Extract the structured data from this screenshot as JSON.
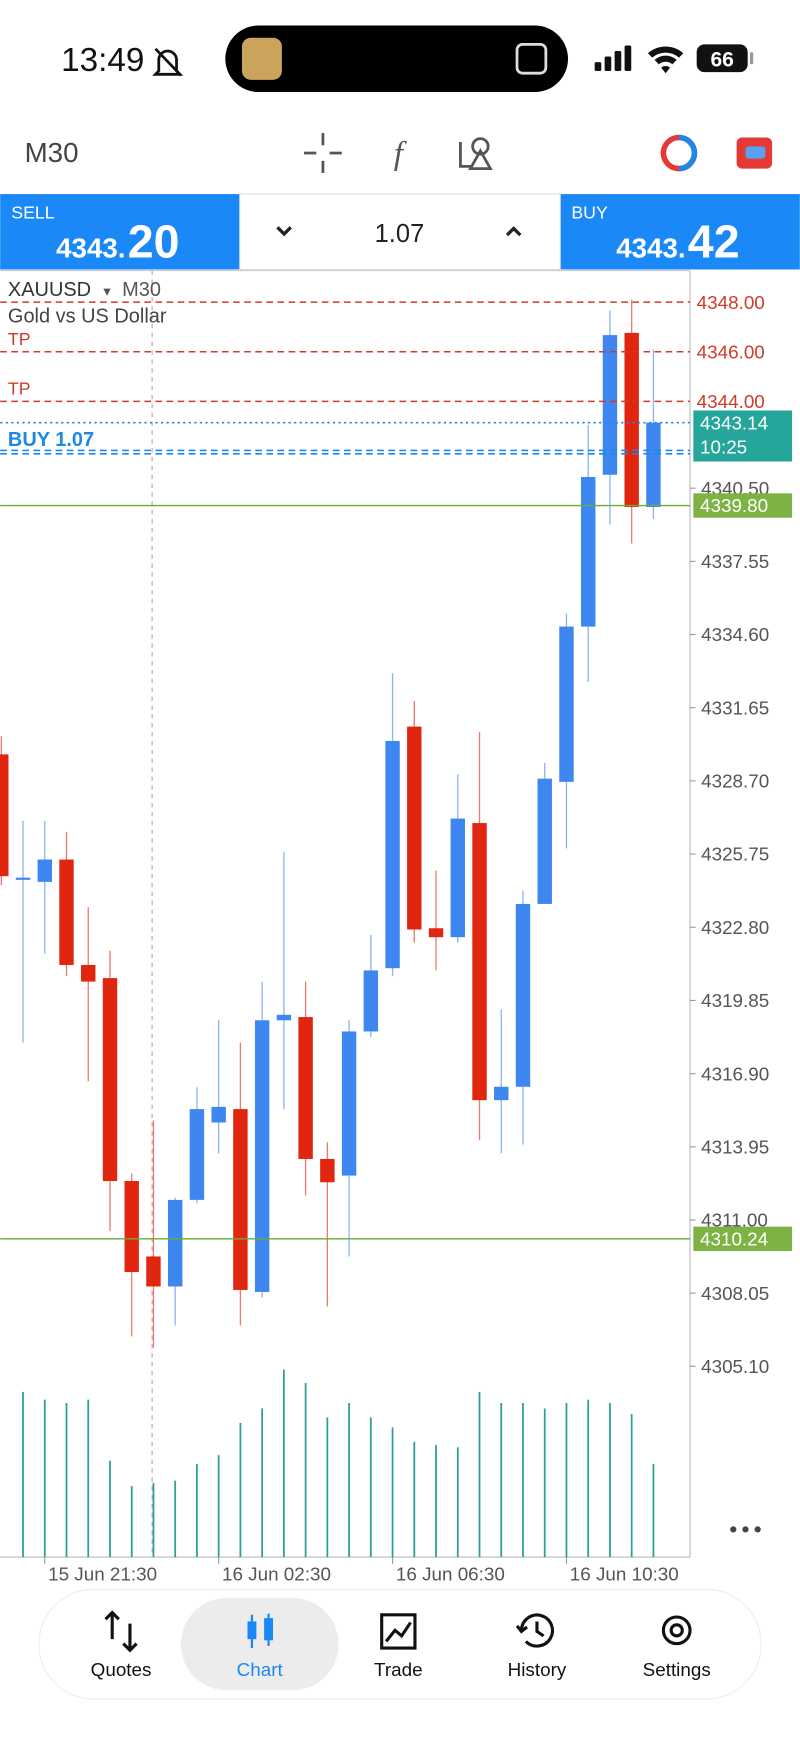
{
  "status_bar": {
    "time": "13:49",
    "battery": "66"
  },
  "toolbar": {
    "timeframe": "M30"
  },
  "trade_panel": {
    "sell": {
      "label": "SELL",
      "price_prefix": "4343.",
      "price_suffix": "20"
    },
    "volume": "1.07",
    "buy": {
      "label": "BUY",
      "price_prefix": "4343.",
      "price_suffix": "42"
    }
  },
  "chart": {
    "type": "candlestick",
    "symbol": "XAUUSD",
    "timeframe": "M30",
    "description": "Gold vs US Dollar",
    "categories": [
      null,
      null,
      "15 Jun 21:30",
      null,
      null,
      null,
      null,
      null,
      null,
      null,
      "16 Jun 02:30",
      null,
      null,
      null,
      null,
      null,
      null,
      null,
      "16 Jun 06:30",
      null,
      null,
      null,
      null,
      null,
      null,
      null,
      "16 Jun 10:30",
      null,
      null,
      null,
      null
    ],
    "open": [
      4329.77,
      4324.77,
      4324.63,
      4325.53,
      4321.28,
      4320.75,
      4312.57,
      4309.53,
      4308.32,
      4311.81,
      4314.93,
      4315.47,
      4308.1,
      4319.05,
      4319.18,
      4313.46,
      4312.79,
      4318.6,
      4321.15,
      4330.89,
      4322.76,
      4322.4,
      4327.0,
      4315.83,
      4316.37,
      4323.74,
      4328.66,
      4334.92,
      4341.04,
      4346.76,
      4339.74
    ],
    "high": [
      4330.5,
      4327.09,
      4327.09,
      4326.65,
      4323.61,
      4321.86,
      4312.88,
      4315.02,
      4311.9,
      4316.35,
      4319.05,
      4318.15,
      4320.61,
      4325.84,
      4320.61,
      4314.13,
      4319.05,
      4322.49,
      4333.04,
      4331.92,
      4325.08,
      4328.97,
      4330.67,
      4319.49,
      4324.28,
      4329.42,
      4335.45,
      4343.05,
      4347.66,
      4348.1,
      4346.09
    ],
    "low": [
      4324.5,
      4318.15,
      4321.73,
      4320.83,
      4316.59,
      4310.55,
      4306.31,
      4305.86,
      4306.75,
      4311.67,
      4313.68,
      4306.75,
      4307.87,
      4315.47,
      4311.98,
      4307.51,
      4309.53,
      4318.38,
      4320.83,
      4322.18,
      4321.06,
      4322.18,
      4314.22,
      4313.68,
      4314.04,
      4323.74,
      4325.98,
      4332.68,
      4339.03,
      4338.27,
      4339.25
    ],
    "close": [
      4324.86,
      4324.8,
      4325.53,
      4321.28,
      4320.61,
      4312.57,
      4308.9,
      4308.32,
      4311.81,
      4315.47,
      4315.56,
      4308.18,
      4319.05,
      4319.27,
      4313.46,
      4312.52,
      4318.6,
      4321.06,
      4330.31,
      4322.71,
      4322.4,
      4327.18,
      4315.83,
      4316.37,
      4323.74,
      4328.79,
      4334.92,
      4340.95,
      4346.67,
      4339.74,
      4343.14
    ],
    "volume": [
      null,
      149,
      142,
      139,
      142,
      87,
      64,
      67,
      69,
      84,
      92,
      121,
      134,
      169,
      157,
      126,
      139,
      126,
      117,
      104,
      101,
      99,
      149,
      139,
      139,
      134,
      139,
      142,
      139,
      129,
      84
    ],
    "up_color": "#3f87f0",
    "down_color": "#e1260f",
    "volume_color": "#2aa198",
    "ylim": [
      4297.41,
      4349.27
    ],
    "yticks": [
      {
        "value": 4305.1,
        "label": "4305.10"
      },
      {
        "value": 4308.05,
        "label": "4308.05"
      },
      {
        "value": 4311,
        "label": "4311.00"
      },
      {
        "value": 4313.95,
        "label": "4313.95"
      },
      {
        "value": 4316.9,
        "label": "4316.90"
      },
      {
        "value": 4319.85,
        "label": "4319.85"
      },
      {
        "value": 4322.8,
        "label": "4322.80"
      },
      {
        "value": 4325.75,
        "label": "4325.75"
      },
      {
        "value": 4328.7,
        "label": "4328.70"
      },
      {
        "value": 4331.65,
        "label": "4331.65"
      },
      {
        "value": 4334.6,
        "label": "4334.60"
      },
      {
        "value": 4337.55,
        "label": "4337.55"
      },
      {
        "value": 4340.5,
        "label": "4340.50"
      }
    ],
    "levels": [
      {
        "value": 4348,
        "label": "4348.00",
        "color": "#d03b2b",
        "style": "dashed"
      },
      {
        "value": 4346,
        "label": "4346.00",
        "tag": "TP",
        "color": "#d03b2b",
        "style": "dashed"
      },
      {
        "value": 4344,
        "label": "4344.00",
        "tag": "TP",
        "color": "#d03b2b",
        "style": "dashed"
      },
      {
        "value": 4343.14,
        "label": "4343.14",
        "timer": "10:25",
        "color": "#1e88e5",
        "style": "dotted",
        "label_color": "#26a69a"
      },
      {
        "value": 4342.02,
        "tag": "BUY 1.07",
        "color": "#1e88e5",
        "style": "dashed"
      },
      {
        "value": 4339.8,
        "label": "4339.80",
        "color": "#6aaa3a",
        "style": "solid",
        "label_color": "#7cb342"
      },
      {
        "value": 4310.24,
        "label": "4310.24",
        "color": "#6aaa3a",
        "style": "solid",
        "label_color": "#7cb342"
      }
    ]
  },
  "nav": {
    "items": [
      {
        "label": "Quotes"
      },
      {
        "label": "Chart",
        "active": true
      },
      {
        "label": "Trade"
      },
      {
        "label": "History"
      },
      {
        "label": "Settings"
      }
    ]
  }
}
